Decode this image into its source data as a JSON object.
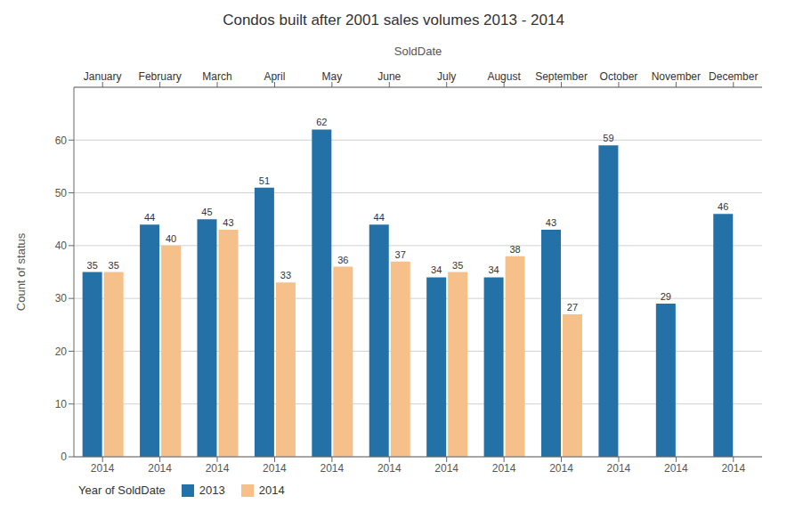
{
  "chart_data": {
    "type": "bar",
    "title": "Condos built after 2001 sales volumes 2013 - 2014",
    "xlabel": "SoldDate",
    "ylabel": "Count of status",
    "x_tick_label": "2014",
    "legend_title": "Year of SoldDate",
    "categories": [
      "January",
      "February",
      "March",
      "April",
      "May",
      "June",
      "July",
      "August",
      "September",
      "October",
      "November",
      "December"
    ],
    "series": [
      {
        "name": "2013",
        "color": "#2471a8",
        "values": [
          35,
          44,
          45,
          51,
          62,
          44,
          34,
          34,
          43,
          59,
          29,
          46
        ]
      },
      {
        "name": "2014",
        "color": "#f5c08a",
        "values": [
          35,
          40,
          43,
          33,
          36,
          37,
          35,
          38,
          27,
          null,
          null,
          null
        ]
      }
    ],
    "ylim": [
      0,
      70
    ],
    "yticks": [
      0,
      10,
      20,
      30,
      40,
      50,
      60
    ],
    "grid": true,
    "data_labels": true
  }
}
